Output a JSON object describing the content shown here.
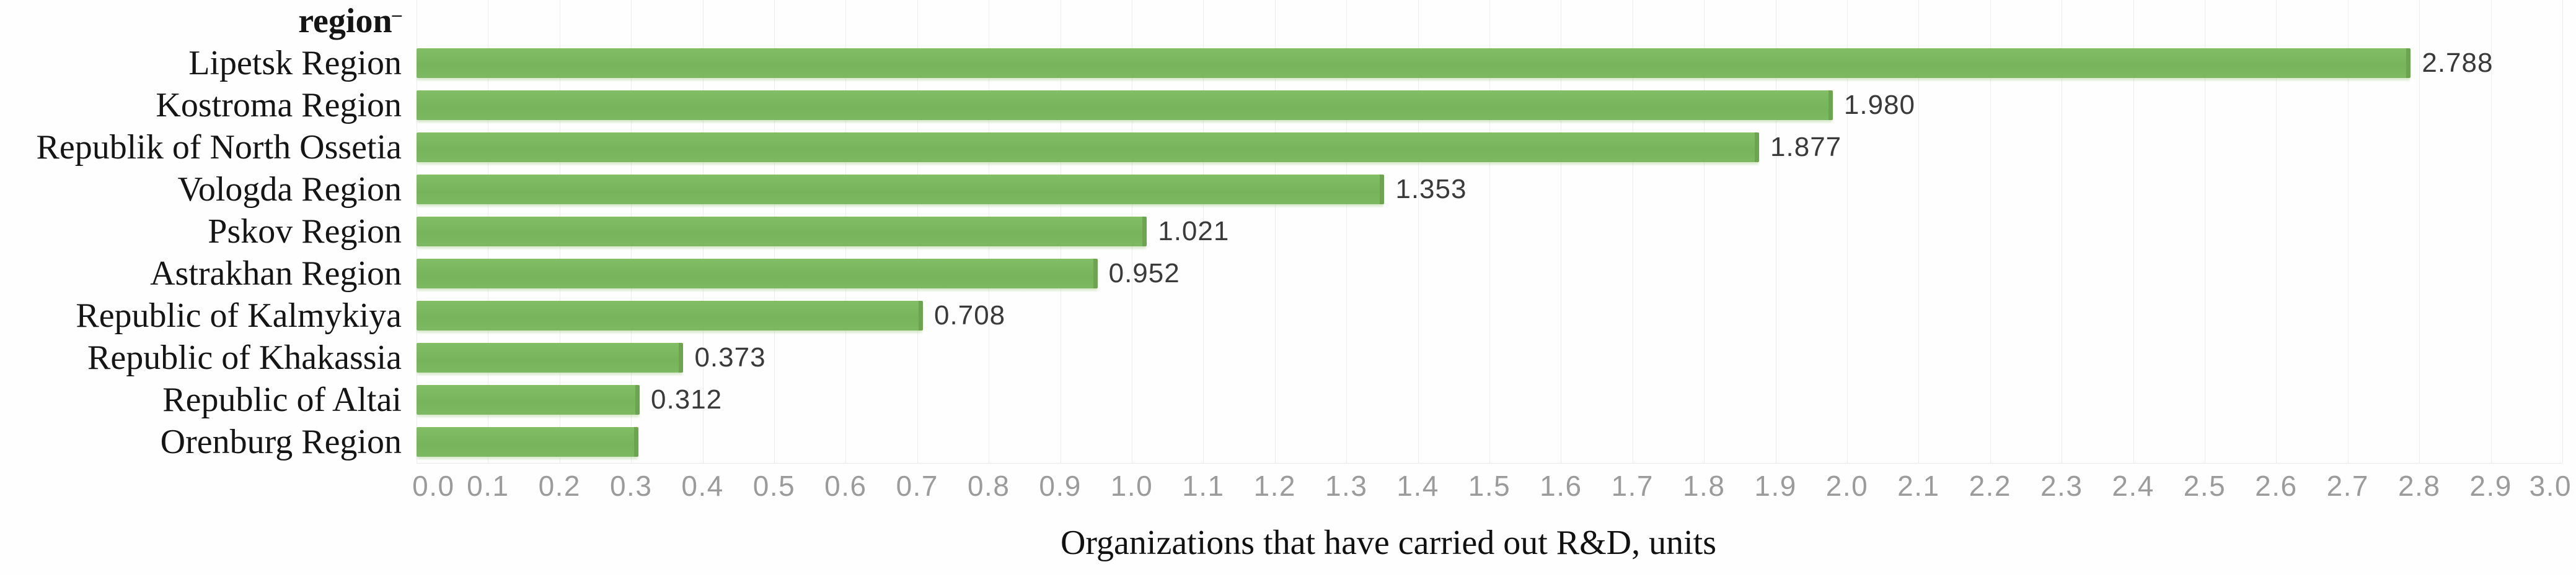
{
  "header": {
    "column_title": "region",
    "footnote_mark": "–"
  },
  "chart_data": {
    "type": "bar",
    "orientation": "horizontal",
    "title": "",
    "xlabel": "Organizations that have carried out R&D, units",
    "ylabel": "region",
    "xlim": [
      0.0,
      3.0
    ],
    "grid": "vertical gridlines every 0.1, light gray, no horizontal gridlines",
    "legend": "none",
    "bar_color": "#7ab55c",
    "bar_edge_color": "#6ca450",
    "categories": [
      "Lipetsk Region",
      "Kostroma Region",
      "Republik of North Ossetia",
      "Vologda Region",
      "Pskov Region",
      "Astrakhan Region",
      "Republic of Kalmykiya",
      "Republic of Khakassia",
      "Republic of Altai",
      "Orenburg Region"
    ],
    "values": [
      2.788,
      1.98,
      1.877,
      1.353,
      1.021,
      0.952,
      0.708,
      0.373,
      0.312,
      0.31
    ],
    "value_labels": [
      "2.788",
      "1.980",
      "1.877",
      "1.353",
      "1.021",
      "0.952",
      "0.708",
      "0.373",
      "0.312",
      ""
    ],
    "x_ticks": [
      "0.0",
      "0.1",
      "0.2",
      "0.3",
      "0.4",
      "0.5",
      "0.6",
      "0.7",
      "0.8",
      "0.9",
      "1.0",
      "1.1",
      "1.2",
      "1.3",
      "1.4",
      "1.5",
      "1.6",
      "1.7",
      "1.8",
      "1.9",
      "2.0",
      "2.1",
      "2.2",
      "2.3",
      "2.4",
      "2.5",
      "2.6",
      "2.7",
      "2.8",
      "2.9",
      "3.0"
    ]
  },
  "layout_colors": {
    "gridline": "#ededed",
    "tick_label": "#9b9b9b",
    "value_label": "#3a3a3a",
    "category_label": "#151515",
    "axis_line": "#e6e6e6",
    "background": "#fefefe"
  }
}
